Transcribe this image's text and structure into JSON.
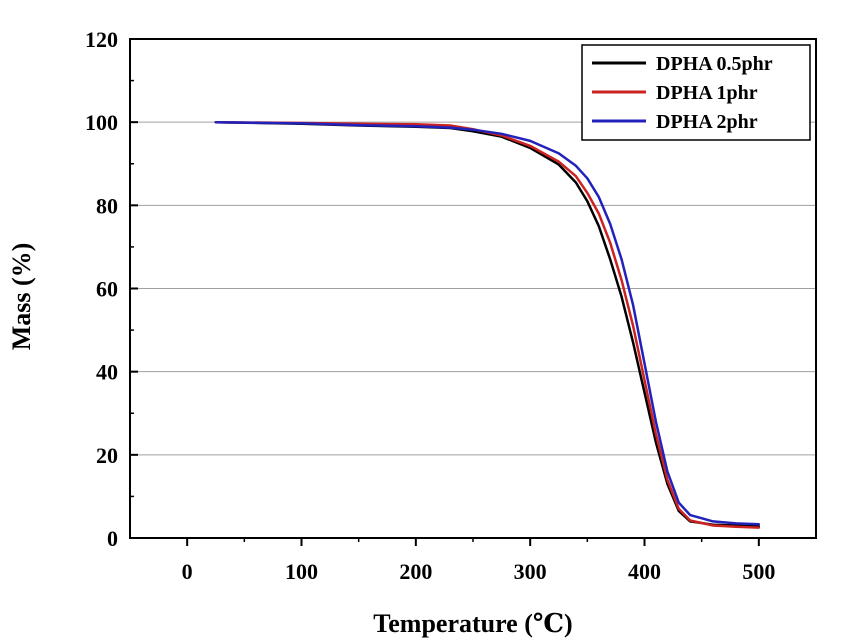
{
  "chart_data": {
    "type": "line",
    "title": "",
    "xlabel": "Temperature (℃)",
    "ylabel": "Mass (%)",
    "xlim": [
      -50,
      550
    ],
    "ylim": [
      0,
      120
    ],
    "xticks": [
      0,
      100,
      200,
      300,
      400,
      500
    ],
    "yticks": [
      0,
      20,
      40,
      60,
      80,
      100,
      120
    ],
    "grid": true,
    "legend_position": "top-right",
    "series": [
      {
        "name": "DPHA 0.5phr",
        "color": "#000000",
        "points": [
          [
            25,
            100
          ],
          [
            100,
            99.6
          ],
          [
            150,
            99.2
          ],
          [
            200,
            98.9
          ],
          [
            230,
            98.6
          ],
          [
            250,
            97.8
          ],
          [
            275,
            96.5
          ],
          [
            300,
            93.8
          ],
          [
            325,
            89.8
          ],
          [
            340,
            85.5
          ],
          [
            350,
            81
          ],
          [
            360,
            75
          ],
          [
            370,
            67
          ],
          [
            380,
            58
          ],
          [
            390,
            47
          ],
          [
            400,
            35
          ],
          [
            410,
            23
          ],
          [
            420,
            13
          ],
          [
            430,
            6.5
          ],
          [
            440,
            4
          ],
          [
            460,
            3.2
          ],
          [
            480,
            3
          ],
          [
            500,
            2.8
          ]
        ]
      },
      {
        "name": "DPHA 1phr",
        "color": "#cc2222",
        "points": [
          [
            25,
            100
          ],
          [
            100,
            99.8
          ],
          [
            150,
            99.6
          ],
          [
            200,
            99.5
          ],
          [
            230,
            99.2
          ],
          [
            250,
            98.3
          ],
          [
            275,
            96.8
          ],
          [
            300,
            94.3
          ],
          [
            325,
            90.5
          ],
          [
            340,
            87
          ],
          [
            350,
            83
          ],
          [
            360,
            78
          ],
          [
            370,
            71
          ],
          [
            380,
            62
          ],
          [
            390,
            51
          ],
          [
            400,
            38
          ],
          [
            410,
            25
          ],
          [
            420,
            14
          ],
          [
            430,
            7
          ],
          [
            440,
            4.2
          ],
          [
            460,
            3
          ],
          [
            480,
            2.7
          ],
          [
            500,
            2.5
          ]
        ]
      },
      {
        "name": "DPHA 2phr",
        "color": "#2222bb",
        "points": [
          [
            25,
            100
          ],
          [
            100,
            99.7
          ],
          [
            150,
            99.3
          ],
          [
            200,
            99
          ],
          [
            230,
            98.7
          ],
          [
            250,
            98.2
          ],
          [
            275,
            97.2
          ],
          [
            300,
            95.5
          ],
          [
            325,
            92.5
          ],
          [
            340,
            89.5
          ],
          [
            350,
            86.5
          ],
          [
            360,
            82
          ],
          [
            370,
            75.5
          ],
          [
            380,
            67
          ],
          [
            390,
            56
          ],
          [
            400,
            42
          ],
          [
            410,
            28
          ],
          [
            420,
            16
          ],
          [
            430,
            8.5
          ],
          [
            440,
            5.5
          ],
          [
            460,
            4
          ],
          [
            480,
            3.5
          ],
          [
            500,
            3.3
          ]
        ]
      }
    ]
  }
}
